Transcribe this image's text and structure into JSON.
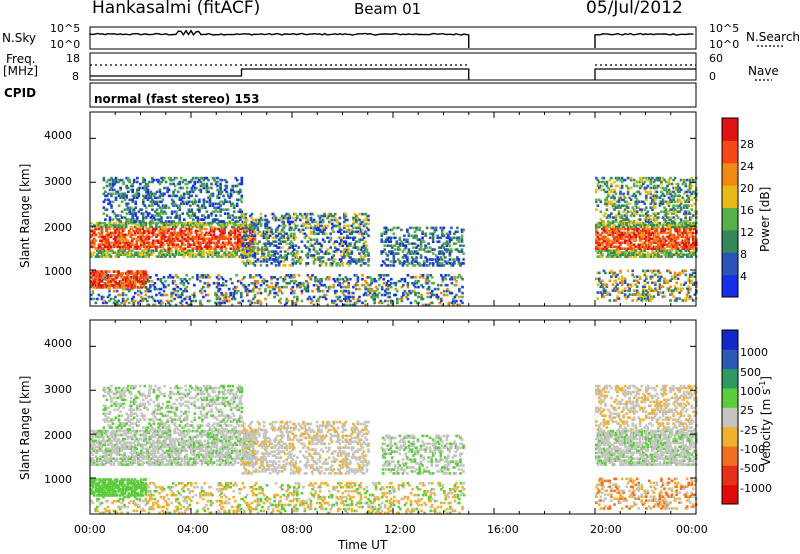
{
  "header": {
    "station": "Hankasalmi (fitACF)",
    "beam": "Beam 01",
    "date": "05/Jul/2012"
  },
  "noise_panel": {
    "left_label": "N.Sky",
    "left_ticks": [
      "10^5",
      "10^0"
    ],
    "right_label": "N.Search",
    "right_ticks": [
      "10^5",
      "10^0"
    ]
  },
  "freq_panel": {
    "left_label_1": "Freq.",
    "left_label_2": "[MHz]",
    "left_ticks": [
      "18",
      "8"
    ],
    "right_label": "Nave",
    "right_ticks": [
      "60",
      "0"
    ]
  },
  "cpid": {
    "label": "CPID",
    "value": "normal (fast stereo) 153"
  },
  "chart_data": [
    {
      "type": "heatmap",
      "quantity": "Power",
      "xlabel": "",
      "ylabel": "Slant Range [km]",
      "xlim": [
        0,
        24
      ],
      "ylim": [
        180,
        4600
      ],
      "yticks": [
        "1000",
        "2000",
        "3000",
        "4000"
      ],
      "colorbar_label": "Power [dB]",
      "colorbar_ticks": [
        "4",
        "8",
        "12",
        "16",
        "20",
        "24",
        "28"
      ],
      "colorbar_range": [
        0,
        32
      ],
      "colors": [
        "#1530e8",
        "#2a54b8",
        "#34875a",
        "#58b048",
        "#e8ba18",
        "#f08a10",
        "#f44818",
        "#e01414"
      ],
      "data_gap_hours": [
        15.0,
        20.0
      ]
    },
    {
      "type": "heatmap",
      "quantity": "Velocity",
      "xlabel": "Time UT",
      "ylabel": "Slant Range [km]",
      "xlim": [
        0,
        24
      ],
      "ylim": [
        180,
        4600
      ],
      "xticks": [
        "00:00",
        "04:00",
        "08:00",
        "12:00",
        "16:00",
        "20:00",
        "00:00"
      ],
      "yticks": [
        "1000",
        "2000",
        "3000",
        "4000"
      ],
      "colorbar_label": "Velocity [m s^-1]",
      "colorbar_ticks": [
        "1000",
        "500",
        "100",
        "25",
        "-25",
        "-100",
        "-500",
        "-1000"
      ],
      "colors": [
        "#1428c8",
        "#2a5ab4",
        "#2f9a60",
        "#5ccc3c",
        "#c4c4c0",
        "#f0b030",
        "#f07020",
        "#e83018",
        "#e00a0a"
      ],
      "data_gap_hours": [
        15.0,
        20.0
      ]
    }
  ]
}
